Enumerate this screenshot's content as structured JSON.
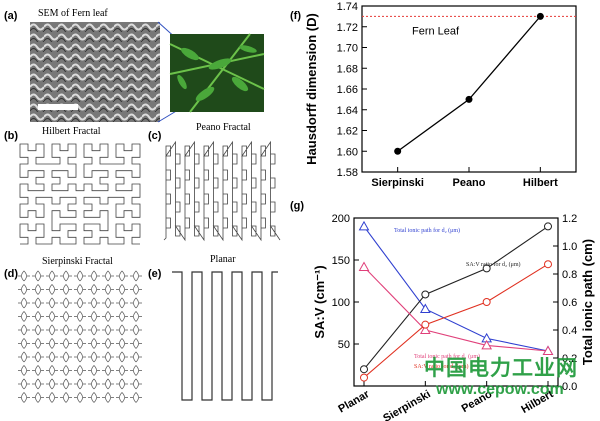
{
  "panels": {
    "a": {
      "label": "(a)",
      "caption": "SEM of Fern leaf"
    },
    "b": {
      "label": "(b)",
      "caption": "Hilbert Fractal"
    },
    "c": {
      "label": "(c)",
      "caption": "Peano Fractal"
    },
    "d": {
      "label": "(d)",
      "caption": "Sierpinski Fractal"
    },
    "e": {
      "label": "(e)",
      "caption": "Planar"
    },
    "f": {
      "label": "(f)"
    },
    "g": {
      "label": "(g)"
    }
  },
  "watermark": {
    "cn": "中国电力工业网",
    "url": "www.cepow.com"
  },
  "chart_data": [
    {
      "type": "line",
      "panel": "f",
      "categories": [
        "Sierpinski",
        "Peano",
        "Hilbert"
      ],
      "series": [
        {
          "values": [
            1.6,
            1.65,
            1.73
          ]
        }
      ],
      "reference_line": {
        "label": "Fern Leaf",
        "value": 1.73,
        "color": "#e53935"
      },
      "ylabel": "Hausdorff dimension (D)",
      "ylim": [
        1.58,
        1.74
      ],
      "yticks": [
        "1.58",
        "1.60",
        "1.62",
        "1.64",
        "1.66",
        "1.68",
        "1.70",
        "1.72",
        "1.74"
      ]
    },
    {
      "type": "line",
      "panel": "g",
      "categories": [
        "Planar",
        "Sierpinski",
        "Peano",
        "Hilbert"
      ],
      "ylabel_left": "SA:V (cm⁻¹)",
      "ylabel_right": "Total ionic path (cm)",
      "ylim_left": [
        0,
        200
      ],
      "ylim_right": [
        0,
        1.2
      ],
      "yticks_left": [
        "50",
        "100",
        "150",
        "200"
      ],
      "yticks_right": [
        "0.0",
        "0.2",
        "0.4",
        "0.6",
        "0.8",
        "1.0",
        "1.2"
      ],
      "series": [
        {
          "name": "Total ionic path for d₂ (μm)",
          "axis": "right",
          "marker": "triangle",
          "color": "#3040d0",
          "values": [
            1.14,
            0.55,
            0.34,
            0.25
          ]
        },
        {
          "name": "SA:V ratio for d₂ (μm)",
          "axis": "left",
          "marker": "circle",
          "color": "#222222",
          "values": [
            20,
            109,
            140,
            190
          ]
        },
        {
          "name": "Total ionic path for d₁ (μm)",
          "axis": "right",
          "marker": "triangle",
          "color": "#e0407a",
          "values": [
            0.85,
            0.4,
            0.29,
            0.25
          ]
        },
        {
          "name": "SA:V ratio for d₁ (μm)",
          "axis": "left",
          "marker": "circle",
          "color": "#e03020",
          "values": [
            10,
            73,
            100,
            145
          ]
        }
      ]
    }
  ],
  "colors": {
    "accent_red": "#e53935",
    "fern_green": "#3a9a2a"
  }
}
